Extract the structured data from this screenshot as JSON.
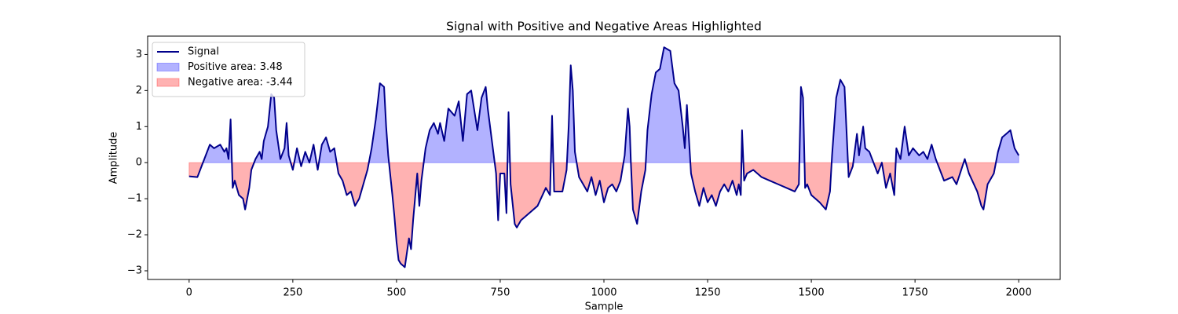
{
  "chart_data": {
    "type": "line",
    "title": "Signal with Positive and Negative Areas Highlighted",
    "xlabel": "Sample",
    "ylabel": "Amplitude",
    "x": [
      0,
      20,
      30,
      50,
      60,
      75,
      85,
      90,
      95,
      100,
      105,
      110,
      120,
      130,
      135,
      145,
      150,
      160,
      170,
      175,
      180,
      190,
      198,
      205,
      210,
      220,
      230,
      235,
      240,
      250,
      260,
      270,
      280,
      290,
      300,
      310,
      320,
      330,
      340,
      350,
      360,
      370,
      380,
      390,
      400,
      410,
      420,
      430,
      440,
      450,
      460,
      470,
      475,
      480,
      490,
      495,
      500,
      505,
      510,
      520,
      525,
      530,
      535,
      540,
      550,
      555,
      560,
      570,
      580,
      590,
      600,
      605,
      615,
      625,
      640,
      650,
      660,
      670,
      680,
      695,
      705,
      715,
      720,
      740,
      745,
      750,
      760,
      765,
      770,
      775,
      785,
      790,
      800,
      820,
      840,
      860,
      870,
      875,
      880,
      900,
      910,
      915,
      920,
      925,
      930,
      940,
      950,
      960,
      970,
      980,
      990,
      1000,
      1010,
      1020,
      1030,
      1040,
      1050,
      1058,
      1062,
      1065,
      1070,
      1080,
      1090,
      1100,
      1105,
      1115,
      1125,
      1135,
      1145,
      1160,
      1170,
      1180,
      1190,
      1195,
      1200,
      1210,
      1220,
      1230,
      1240,
      1250,
      1260,
      1270,
      1280,
      1290,
      1300,
      1310,
      1320,
      1325,
      1330,
      1333,
      1338,
      1345,
      1360,
      1380,
      1400,
      1420,
      1440,
      1460,
      1470,
      1475,
      1480,
      1485,
      1490,
      1500,
      1520,
      1535,
      1545,
      1550,
      1560,
      1570,
      1580,
      1590,
      1600,
      1610,
      1615,
      1625,
      1630,
      1640,
      1660,
      1670,
      1680,
      1690,
      1700,
      1705,
      1715,
      1725,
      1735,
      1745,
      1760,
      1770,
      1780,
      1790,
      1800,
      1820,
      1840,
      1850,
      1870,
      1880,
      1900,
      1910,
      1915,
      1925,
      1940,
      1950,
      1960,
      1970,
      1980,
      1990,
      2000
    ],
    "series": [
      {
        "name": "Signal",
        "color": "#00008b",
        "values": [
          -0.38,
          -0.4,
          -0.1,
          0.5,
          0.4,
          0.5,
          0.3,
          0.4,
          0.1,
          1.2,
          -0.7,
          -0.5,
          -0.9,
          -1.0,
          -1.3,
          -0.7,
          -0.2,
          0.1,
          0.3,
          0.1,
          0.6,
          1.0,
          1.9,
          1.8,
          0.9,
          0.1,
          0.4,
          1.1,
          0.2,
          -0.2,
          0.4,
          -0.1,
          0.3,
          0.0,
          0.5,
          -0.2,
          0.5,
          0.7,
          0.3,
          0.4,
          -0.3,
          -0.5,
          -0.9,
          -0.8,
          -1.2,
          -1.0,
          -0.6,
          -0.2,
          0.4,
          1.2,
          2.2,
          2.1,
          1.0,
          0.2,
          -0.9,
          -1.5,
          -2.2,
          -2.7,
          -2.8,
          -2.9,
          -2.5,
          -2.1,
          -2.4,
          -1.6,
          -0.3,
          -1.2,
          -0.5,
          0.4,
          0.9,
          1.1,
          0.8,
          1.1,
          0.6,
          1.5,
          1.3,
          1.7,
          0.6,
          1.9,
          2.0,
          0.9,
          1.8,
          2.1,
          1.5,
          -0.3,
          -1.6,
          -0.3,
          -0.3,
          -1.4,
          1.4,
          -0.6,
          -1.7,
          -1.8,
          -1.6,
          -1.4,
          -1.2,
          -0.7,
          -0.9,
          1.3,
          -0.8,
          -0.8,
          -0.2,
          1.0,
          2.7,
          2.0,
          0.3,
          -0.4,
          -0.6,
          -0.8,
          -0.4,
          -0.9,
          -0.5,
          -1.1,
          -0.7,
          -0.6,
          -0.8,
          -0.5,
          0.2,
          1.5,
          1.0,
          0.0,
          -1.3,
          -1.7,
          -0.8,
          -0.2,
          0.9,
          1.9,
          2.5,
          2.6,
          3.2,
          3.1,
          2.2,
          2.0,
          1.0,
          0.4,
          1.6,
          -0.3,
          -0.8,
          -1.2,
          -0.7,
          -1.1,
          -0.9,
          -1.2,
          -0.8,
          -0.6,
          -0.8,
          -0.5,
          -0.9,
          -0.6,
          -0.9,
          0.9,
          -0.5,
          -0.3,
          -0.2,
          -0.4,
          -0.5,
          -0.6,
          -0.7,
          -0.8,
          -0.6,
          2.1,
          1.8,
          -0.7,
          -0.6,
          -0.9,
          -1.1,
          -1.3,
          -0.8,
          0.2,
          1.8,
          2.3,
          2.1,
          -0.4,
          -0.1,
          0.8,
          0.2,
          1.0,
          0.4,
          0.3,
          -0.3,
          0.0,
          -0.7,
          -0.3,
          -0.9,
          0.4,
          0.1,
          1.0,
          0.2,
          0.4,
          0.2,
          0.3,
          0.1,
          0.5,
          0.1,
          -0.5,
          -0.4,
          -0.6,
          0.1,
          -0.3,
          -0.8,
          -1.2,
          -1.3,
          -0.6,
          -0.3,
          0.3,
          0.7,
          0.8,
          0.9,
          0.4,
          0.2
        ]
      }
    ],
    "fill_areas": [
      {
        "name": "Positive area: 3.48",
        "color": "blue",
        "where": "above"
      },
      {
        "name": "Negative area: -3.44",
        "color": "red",
        "where": "below"
      }
    ],
    "xlim": [
      -100,
      2100
    ],
    "ylim": [
      -3.24,
      3.51
    ],
    "xticks": [
      0,
      250,
      500,
      750,
      1000,
      1250,
      1500,
      1750,
      2000
    ],
    "yticks": [
      {
        "value": -3,
        "label": "−3"
      },
      {
        "value": -2,
        "label": "−2"
      },
      {
        "value": -1,
        "label": "−1"
      },
      0,
      1,
      2,
      3
    ],
    "legend": "upper left"
  }
}
